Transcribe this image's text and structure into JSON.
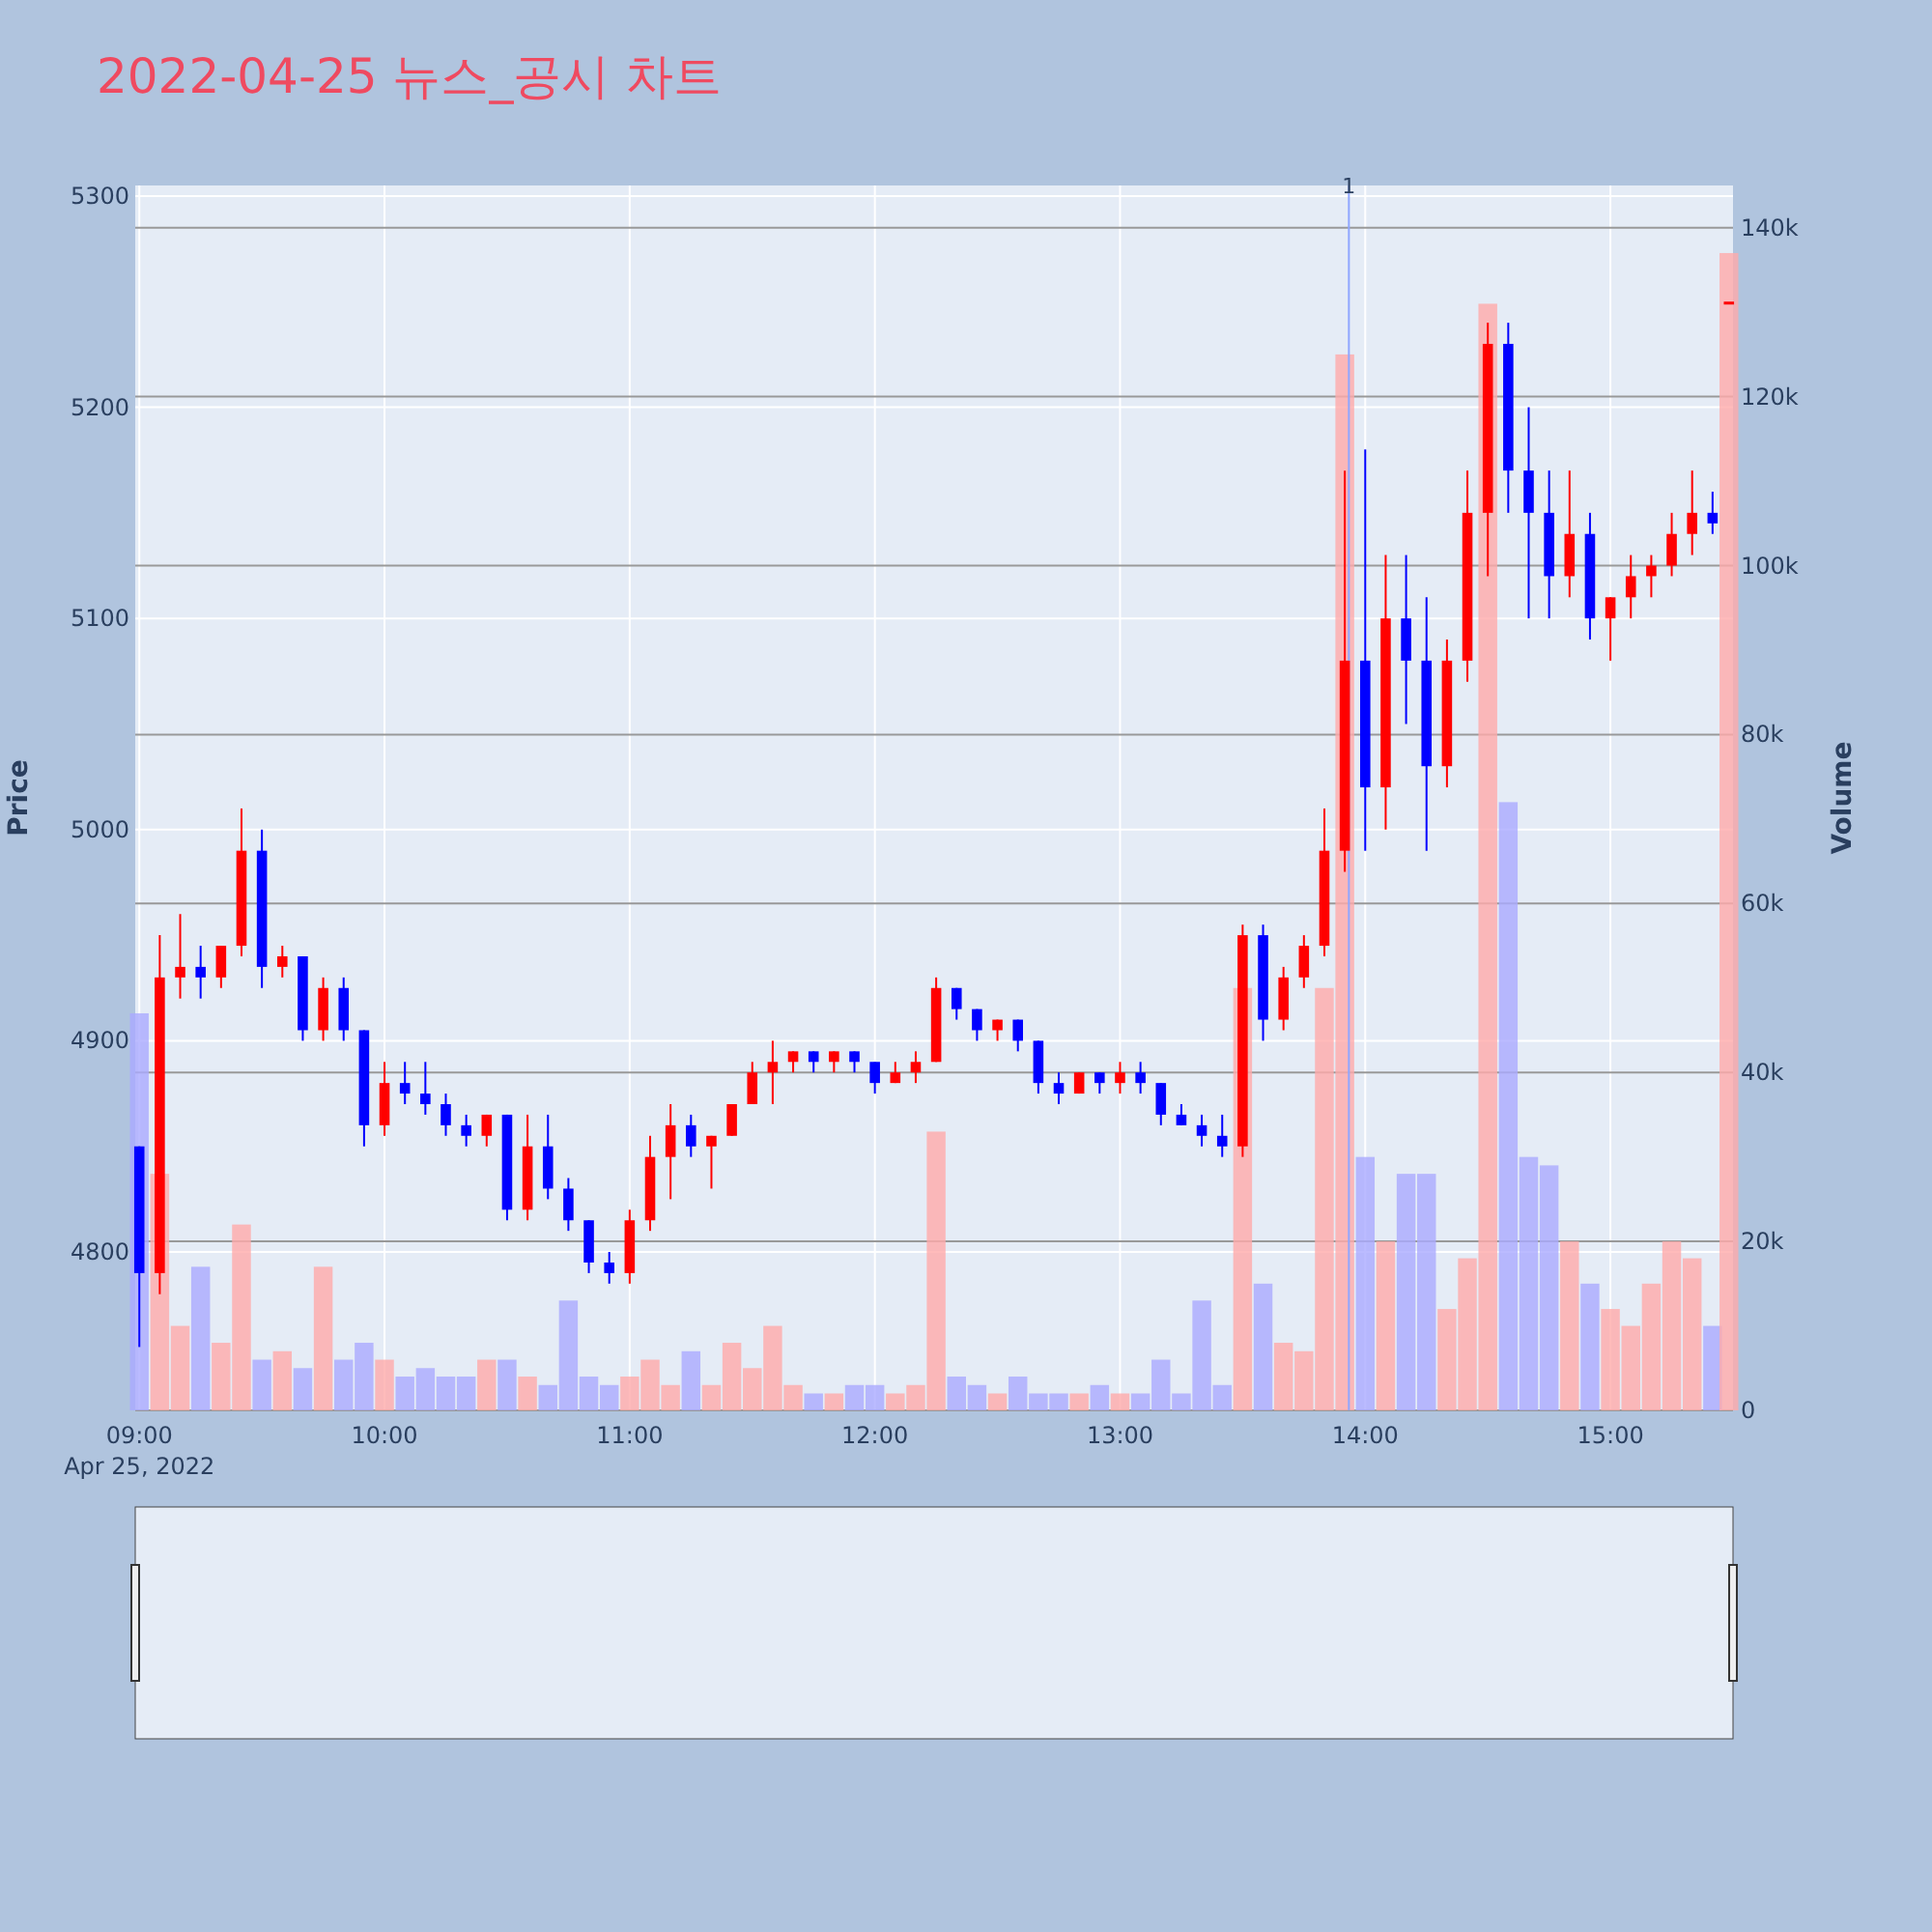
{
  "chart_data": {
    "type": "candlestick",
    "title": "2022-04-25 뉴스_공시 차트",
    "ylabel": "Price",
    "y2label": "Volume",
    "x": [
      "2022-04-25T09:00",
      "2022-04-25T09:05",
      "2022-04-25T09:10",
      "2022-04-25T09:15",
      "2022-04-25T09:20",
      "2022-04-25T09:25",
      "2022-04-25T09:30",
      "2022-04-25T09:35",
      "2022-04-25T09:40",
      "2022-04-25T09:45",
      "2022-04-25T09:50",
      "2022-04-25T09:55",
      "2022-04-25T10:00",
      "2022-04-25T10:05",
      "2022-04-25T10:10",
      "2022-04-25T10:15",
      "2022-04-25T10:20",
      "2022-04-25T10:25",
      "2022-04-25T10:30",
      "2022-04-25T10:35",
      "2022-04-25T10:40",
      "2022-04-25T10:45",
      "2022-04-25T10:50",
      "2022-04-25T10:55",
      "2022-04-25T11:00",
      "2022-04-25T11:05",
      "2022-04-25T11:10",
      "2022-04-25T11:15",
      "2022-04-25T11:20",
      "2022-04-25T11:25",
      "2022-04-25T11:30",
      "2022-04-25T11:35",
      "2022-04-25T11:40",
      "2022-04-25T11:45",
      "2022-04-25T11:50",
      "2022-04-25T11:55",
      "2022-04-25T12:00",
      "2022-04-25T12:05",
      "2022-04-25T12:10",
      "2022-04-25T12:15",
      "2022-04-25T12:20",
      "2022-04-25T12:25",
      "2022-04-25T12:30",
      "2022-04-25T12:35",
      "2022-04-25T12:40",
      "2022-04-25T12:45",
      "2022-04-25T12:50",
      "2022-04-25T12:55",
      "2022-04-25T13:00",
      "2022-04-25T13:05",
      "2022-04-25T13:10",
      "2022-04-25T13:15",
      "2022-04-25T13:20",
      "2022-04-25T13:25",
      "2022-04-25T13:30",
      "2022-04-25T13:35",
      "2022-04-25T13:40",
      "2022-04-25T13:45",
      "2022-04-25T13:50",
      "2022-04-25T13:55",
      "2022-04-25T14:00",
      "2022-04-25T14:05",
      "2022-04-25T14:10",
      "2022-04-25T14:15",
      "2022-04-25T14:20",
      "2022-04-25T14:25",
      "2022-04-25T14:30",
      "2022-04-25T14:35",
      "2022-04-25T14:40",
      "2022-04-25T14:45",
      "2022-04-25T14:50",
      "2022-04-25T14:55",
      "2022-04-25T15:00",
      "2022-04-25T15:05",
      "2022-04-25T15:10",
      "2022-04-25T15:15",
      "2022-04-25T15:20",
      "2022-04-25T15:25",
      "2022-04-25T15:29"
    ],
    "ohlc": [
      [
        4850,
        4850,
        4755,
        4790
      ],
      [
        4790,
        4950,
        4780,
        4930
      ],
      [
        4930,
        4960,
        4920,
        4935
      ],
      [
        4935,
        4945,
        4920,
        4930
      ],
      [
        4930,
        4945,
        4925,
        4945
      ],
      [
        4945,
        5010,
        4940,
        4990
      ],
      [
        4990,
        5000,
        4925,
        4935
      ],
      [
        4935,
        4945,
        4930,
        4940
      ],
      [
        4940,
        4940,
        4900,
        4905
      ],
      [
        4905,
        4930,
        4900,
        4925
      ],
      [
        4925,
        4930,
        4900,
        4905
      ],
      [
        4905,
        4905,
        4850,
        4860
      ],
      [
        4860,
        4890,
        4855,
        4880
      ],
      [
        4880,
        4890,
        4870,
        4875
      ],
      [
        4875,
        4890,
        4865,
        4870
      ],
      [
        4870,
        4875,
        4855,
        4860
      ],
      [
        4860,
        4865,
        4850,
        4855
      ],
      [
        4855,
        4865,
        4850,
        4865
      ],
      [
        4865,
        4865,
        4815,
        4820
      ],
      [
        4820,
        4865,
        4815,
        4850
      ],
      [
        4850,
        4865,
        4825,
        4830
      ],
      [
        4830,
        4835,
        4810,
        4815
      ],
      [
        4815,
        4815,
        4790,
        4795
      ],
      [
        4795,
        4800,
        4785,
        4790
      ],
      [
        4790,
        4820,
        4785,
        4815
      ],
      [
        4815,
        4855,
        4810,
        4845
      ],
      [
        4845,
        4870,
        4825,
        4860
      ],
      [
        4860,
        4865,
        4845,
        4850
      ],
      [
        4850,
        4855,
        4830,
        4855
      ],
      [
        4855,
        4870,
        4855,
        4870
      ],
      [
        4870,
        4890,
        4870,
        4885
      ],
      [
        4885,
        4900,
        4870,
        4890
      ],
      [
        4890,
        4895,
        4885,
        4895
      ],
      [
        4895,
        4895,
        4885,
        4890
      ],
      [
        4890,
        4895,
        4885,
        4895
      ],
      [
        4895,
        4895,
        4885,
        4890
      ],
      [
        4890,
        4890,
        4875,
        4880
      ],
      [
        4880,
        4890,
        4880,
        4885
      ],
      [
        4885,
        4895,
        4880,
        4890
      ],
      [
        4890,
        4930,
        4890,
        4925
      ],
      [
        4925,
        4925,
        4910,
        4915
      ],
      [
        4915,
        4915,
        4900,
        4905
      ],
      [
        4905,
        4910,
        4900,
        4910
      ],
      [
        4910,
        4910,
        4895,
        4900
      ],
      [
        4900,
        4900,
        4875,
        4880
      ],
      [
        4880,
        4885,
        4870,
        4875
      ],
      [
        4875,
        4885,
        4875,
        4885
      ],
      [
        4885,
        4885,
        4875,
        4880
      ],
      [
        4880,
        4890,
        4875,
        4885
      ],
      [
        4885,
        4890,
        4875,
        4880
      ],
      [
        4880,
        4880,
        4860,
        4865
      ],
      [
        4865,
        4870,
        4860,
        4860
      ],
      [
        4860,
        4865,
        4850,
        4855
      ],
      [
        4855,
        4865,
        4845,
        4850
      ],
      [
        4850,
        4955,
        4845,
        4950
      ],
      [
        4950,
        4955,
        4900,
        4910
      ],
      [
        4910,
        4935,
        4905,
        4930
      ],
      [
        4930,
        4950,
        4925,
        4945
      ],
      [
        4945,
        5010,
        4940,
        4990
      ],
      [
        4990,
        5170,
        4980,
        5080
      ],
      [
        5080,
        5180,
        4990,
        5020
      ],
      [
        5020,
        5130,
        5000,
        5100
      ],
      [
        5100,
        5130,
        5050,
        5080
      ],
      [
        5080,
        5110,
        4990,
        5030
      ],
      [
        5030,
        5090,
        5020,
        5080
      ],
      [
        5080,
        5170,
        5070,
        5150
      ],
      [
        5150,
        5240,
        5120,
        5230
      ],
      [
        5230,
        5240,
        5150,
        5170
      ],
      [
        5170,
        5200,
        5100,
        5150
      ],
      [
        5150,
        5170,
        5100,
        5120
      ],
      [
        5120,
        5170,
        5110,
        5140
      ],
      [
        5140,
        5150,
        5090,
        5100
      ],
      [
        5100,
        5110,
        5080,
        5110
      ],
      [
        5110,
        5130,
        5100,
        5120
      ],
      [
        5120,
        5130,
        5110,
        5125
      ],
      [
        5125,
        5150,
        5120,
        5140
      ],
      [
        5140,
        5170,
        5130,
        5150
      ],
      [
        5150,
        5160,
        5140,
        5145
      ],
      [
        5250,
        5250,
        5250,
        5250
      ]
    ],
    "colors": [
      "#0000ff",
      "#ff0000",
      "#ff0000",
      "#0000ff",
      "#ff0000",
      "#ff0000",
      "#0000ff",
      "#ff0000",
      "#0000ff",
      "#ff0000",
      "#0000ff",
      "#0000ff",
      "#ff0000",
      "#0000ff",
      "#0000ff",
      "#0000ff",
      "#0000ff",
      "#ff0000",
      "#0000ff",
      "#ff0000",
      "#0000ff",
      "#0000ff",
      "#0000ff",
      "#0000ff",
      "#ff0000",
      "#ff0000",
      "#ff0000",
      "#0000ff",
      "#ff0000",
      "#ff0000",
      "#ff0000",
      "#ff0000",
      "#ff0000",
      "#0000ff",
      "#ff0000",
      "#0000ff",
      "#0000ff",
      "#ff0000",
      "#ff0000",
      "#ff0000",
      "#0000ff",
      "#0000ff",
      "#ff0000",
      "#0000ff",
      "#0000ff",
      "#0000ff",
      "#ff0000",
      "#0000ff",
      "#ff0000",
      "#0000ff",
      "#0000ff",
      "#0000ff",
      "#0000ff",
      "#0000ff",
      "#ff0000",
      "#0000ff",
      "#ff0000",
      "#ff0000",
      "#ff0000",
      "#ff0000",
      "#0000ff",
      "#ff0000",
      "#0000ff",
      "#0000ff",
      "#ff0000",
      "#ff0000",
      "#ff0000",
      "#0000ff",
      "#0000ff",
      "#0000ff",
      "#ff0000",
      "#0000ff",
      "#ff0000",
      "#ff0000",
      "#ff0000",
      "#ff0000",
      "#ff0000",
      "#0000ff",
      "#ff0000"
    ],
    "series": [
      {
        "type": "bar",
        "axis": "y2",
        "values": [
          47000,
          28000,
          10000,
          17000,
          8000,
          22000,
          6000,
          7000,
          5000,
          17000,
          6000,
          8000,
          6000,
          4000,
          5000,
          4000,
          4000,
          6000,
          6000,
          4000,
          3000,
          13000,
          4000,
          3000,
          4000,
          6000,
          3000,
          7000,
          3000,
          8000,
          5000,
          10000,
          3000,
          2000,
          2000,
          3000,
          3000,
          2000,
          3000,
          33000,
          4000,
          3000,
          2000,
          4000,
          2000,
          2000,
          2000,
          3000,
          2000,
          2000,
          6000,
          2000,
          13000,
          3000,
          50000,
          15000,
          8000,
          7000,
          50000,
          125000,
          30000,
          20000,
          28000,
          28000,
          12000,
          18000,
          131000,
          72000,
          30000,
          29000,
          20000,
          15000,
          12000,
          10000,
          15000,
          20000,
          18000,
          10000,
          137000
        ],
        "colors": [
          "#aaaaff",
          "#ffaaaa",
          "#ffaaaa",
          "#aaaaff",
          "#ffaaaa",
          "#ffaaaa",
          "#aaaaff",
          "#ffaaaa",
          "#aaaaff",
          "#ffaaaa",
          "#aaaaff",
          "#aaaaff",
          "#ffaaaa",
          "#aaaaff",
          "#aaaaff",
          "#aaaaff",
          "#aaaaff",
          "#ffaaaa",
          "#aaaaff",
          "#ffaaaa",
          "#aaaaff",
          "#aaaaff",
          "#aaaaff",
          "#aaaaff",
          "#ffaaaa",
          "#ffaaaa",
          "#ffaaaa",
          "#aaaaff",
          "#ffaaaa",
          "#ffaaaa",
          "#ffaaaa",
          "#ffaaaa",
          "#ffaaaa",
          "#aaaaff",
          "#ffaaaa",
          "#aaaaff",
          "#aaaaff",
          "#ffaaaa",
          "#ffaaaa",
          "#ffaaaa",
          "#aaaaff",
          "#aaaaff",
          "#ffaaaa",
          "#aaaaff",
          "#aaaaff",
          "#aaaaff",
          "#ffaaaa",
          "#aaaaff",
          "#ffaaaa",
          "#aaaaff",
          "#aaaaff",
          "#aaaaff",
          "#aaaaff",
          "#aaaaff",
          "#ffaaaa",
          "#aaaaff",
          "#ffaaaa",
          "#ffaaaa",
          "#ffaaaa",
          "#ffaaaa",
          "#aaaaff",
          "#ffaaaa",
          "#aaaaff",
          "#aaaaff",
          "#ffaaaa",
          "#ffaaaa",
          "#ffaaaa",
          "#aaaaff",
          "#aaaaff",
          "#aaaaff",
          "#ffaaaa",
          "#aaaaff",
          "#ffaaaa",
          "#ffaaaa",
          "#ffaaaa",
          "#ffaaaa",
          "#ffaaaa",
          "#aaaaff",
          "#ffaaaa"
        ]
      }
    ],
    "xlim": [
      "2022-04-25T08:59",
      "2022-04-25T15:30"
    ],
    "xticks": [
      {
        "value": "2022-04-25T09:00",
        "label": "09:00\nApr 25, 2022"
      },
      {
        "value": "2022-04-25T10:00",
        "label": "10:00"
      },
      {
        "value": "2022-04-25T11:00",
        "label": "11:00"
      },
      {
        "value": "2022-04-25T12:00",
        "label": "12:00"
      },
      {
        "value": "2022-04-25T13:00",
        "label": "13:00"
      },
      {
        "value": "2022-04-25T14:00",
        "label": "14:00"
      },
      {
        "value": "2022-04-25T15:00",
        "label": "15:00"
      }
    ],
    "ylim": [
      4725,
      5305
    ],
    "yticks": [
      4800,
      4900,
      5000,
      5100,
      5200,
      5300
    ],
    "y2lim": [
      0,
      145000
    ],
    "y2ticks": [
      0,
      {
        "value": 20000,
        "label": "20k"
      },
      {
        "value": 40000,
        "label": "40k"
      },
      {
        "value": 60000,
        "label": "60k"
      },
      {
        "value": 80000,
        "label": "80k"
      },
      {
        "value": 100000,
        "label": "100k"
      },
      {
        "value": 120000,
        "label": "120k"
      },
      {
        "value": 140000,
        "label": "140k"
      }
    ],
    "grid": true,
    "ref_lines": [
      {
        "axis": "x",
        "value": "2022-04-25T13:56",
        "label": "1",
        "color": "#8fa6ff"
      }
    ]
  }
}
